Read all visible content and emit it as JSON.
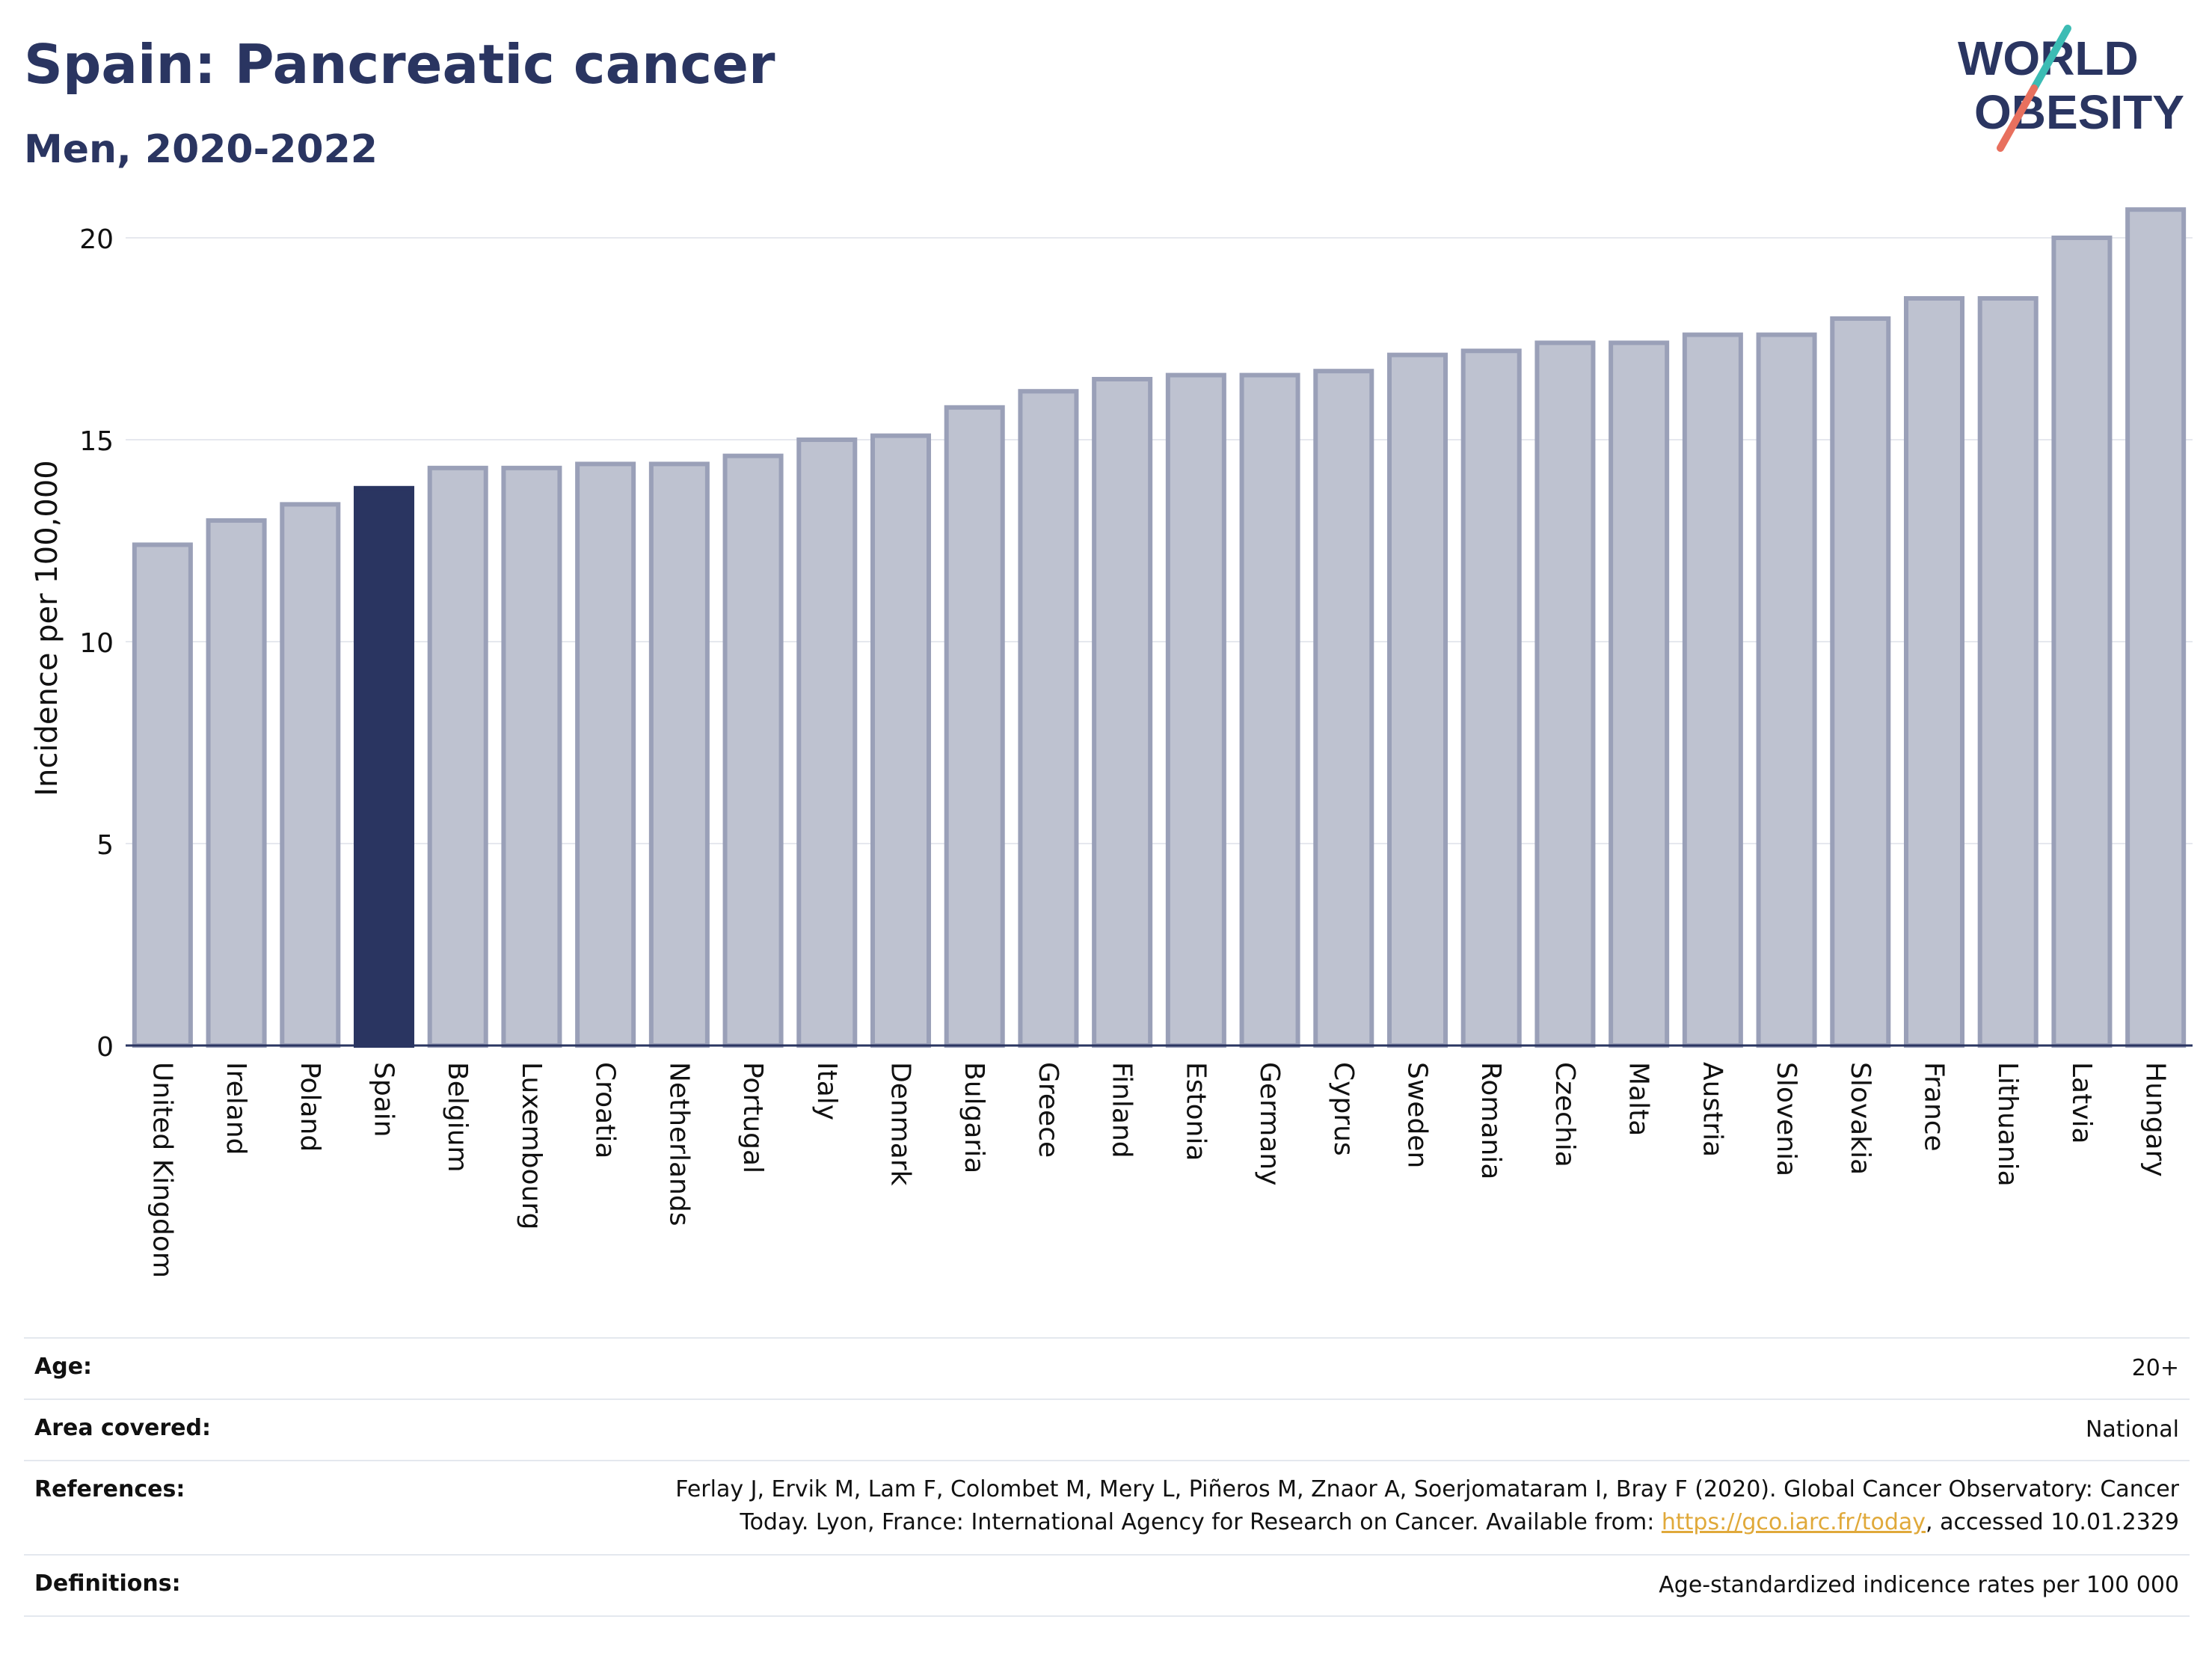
{
  "header": {
    "title": "Spain: Pancreatic cancer",
    "subtitle": "Men, 2020-2022",
    "logo_line1": "WORLD",
    "logo_line2": "OBESITY"
  },
  "colors": {
    "highlight_bar": "#2a3561",
    "other_bar": "#bec2d0",
    "bar_border": "#9aa0b8",
    "text": "#2a3561",
    "logo_teal": "#3cbcb4",
    "logo_coral": "#e8705e",
    "link": "#e0a93a"
  },
  "chart_data": {
    "type": "bar",
    "ylabel": "Incidence per 100,000",
    "xlabel": "",
    "ylim": [
      0,
      21
    ],
    "yticks": [
      0,
      5,
      10,
      15,
      20
    ],
    "grid": true,
    "highlight": "Spain",
    "categories": [
      "United Kingdom",
      "Ireland",
      "Poland",
      "Spain",
      "Belgium",
      "Luxembourg",
      "Croatia",
      "Netherlands",
      "Portugal",
      "Italy",
      "Denmark",
      "Bulgaria",
      "Greece",
      "Finland",
      "Estonia",
      "Germany",
      "Cyprus",
      "Sweden",
      "Romania",
      "Czechia",
      "Malta",
      "Austria",
      "Slovenia",
      "Slovakia",
      "France",
      "Lithuania",
      "Latvia",
      "Hungary"
    ],
    "values": [
      12.4,
      13.0,
      13.4,
      13.8,
      14.3,
      14.3,
      14.4,
      14.4,
      14.6,
      15.0,
      15.1,
      15.8,
      16.2,
      16.5,
      16.6,
      16.6,
      16.7,
      17.1,
      17.2,
      17.4,
      17.4,
      17.6,
      17.6,
      18.0,
      18.5,
      18.5,
      20.0,
      20.7
    ]
  },
  "meta": {
    "age_label": "Age:",
    "age_value": "20+",
    "area_label": "Area covered:",
    "area_value": "National",
    "references_label": "References:",
    "references_line1": "Ferlay J, Ervik M, Lam F, Colombet M, Mery L, Piñeros M, Znaor A, Soerjomataram I, Bray F (2020). Global Cancer Observatory: Cancer",
    "references_line2_pre": "Today. Lyon, France: International Agency for Research on Cancer. Available from: ",
    "references_link": "https://gco.iarc.fr/today",
    "references_line2_post": ", accessed 10.01.2329",
    "definitions_label": "Definitions:",
    "definitions_value": "Age-standardized indicence rates per 100 000"
  }
}
